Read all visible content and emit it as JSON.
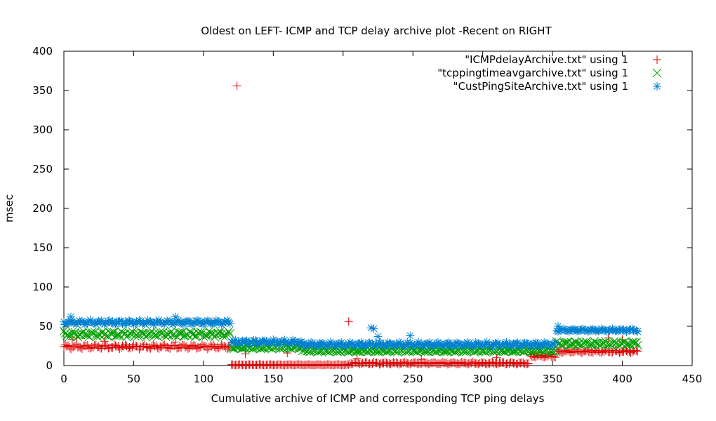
{
  "chart_data": {
    "type": "scatter",
    "title": "Oldest on LEFT- ICMP and TCP delay archive plot -Recent on RIGHT",
    "xlabel": "Cumulative archive of ICMP and corresponding TCP ping delays",
    "ylabel": "msec",
    "xlim": [
      0,
      450
    ],
    "ylim": [
      0,
      400
    ],
    "x_ticks": [
      0,
      50,
      100,
      150,
      200,
      250,
      300,
      350,
      400,
      450
    ],
    "y_ticks": [
      0,
      50,
      100,
      150,
      200,
      250,
      300,
      350,
      400
    ],
    "grid": false,
    "legend_position": "top-right",
    "series": [
      {
        "name": "\"ICMPdelayArchive.txt\" using 1",
        "marker": "plus",
        "color": "#e00000",
        "segments": [
          {
            "x_start": 0,
            "x_end": 119,
            "base": 24,
            "amplitude": 3
          },
          {
            "x_start": 120,
            "x_end": 204,
            "base": 1,
            "amplitude": 0.5
          },
          {
            "x_start": 205,
            "x_end": 333,
            "base": 3,
            "amplitude": 1.5
          },
          {
            "x_start": 334,
            "x_end": 352,
            "base": 12,
            "amplitude": 2
          },
          {
            "x_start": 353,
            "x_end": 411,
            "base": 18,
            "amplitude": 2
          }
        ],
        "outliers": [
          {
            "x": 124,
            "y": 356
          },
          {
            "x": 204,
            "y": 56
          },
          {
            "x": 6,
            "y": 33
          },
          {
            "x": 9,
            "y": 35
          },
          {
            "x": 29,
            "y": 31
          },
          {
            "x": 80,
            "y": 30
          },
          {
            "x": 130,
            "y": 15
          },
          {
            "x": 160,
            "y": 16
          },
          {
            "x": 210,
            "y": 9
          },
          {
            "x": 256,
            "y": 8
          },
          {
            "x": 310,
            "y": 10
          },
          {
            "x": 390,
            "y": 35
          },
          {
            "x": 400,
            "y": 33
          }
        ]
      },
      {
        "name": "\"tcppingtimeavgarchive.txt\" using 1",
        "marker": "x",
        "color": "#00a000",
        "segments": [
          {
            "x_start": 0,
            "x_end": 119,
            "base": 40,
            "amplitude": 4
          },
          {
            "x_start": 120,
            "x_end": 170,
            "base": 23,
            "amplitude": 2
          },
          {
            "x_start": 171,
            "x_end": 352,
            "base": 19,
            "amplitude": 2
          },
          {
            "x_start": 353,
            "x_end": 411,
            "base": 28,
            "amplitude": 3
          }
        ],
        "outliers": []
      },
      {
        "name": "\"CustPingSiteArchive.txt\" using 1",
        "marker": "star",
        "color": "#0080d0",
        "segments": [
          {
            "x_start": 0,
            "x_end": 119,
            "base": 55,
            "amplitude": 3
          },
          {
            "x_start": 120,
            "x_end": 170,
            "base": 30,
            "amplitude": 3
          },
          {
            "x_start": 171,
            "x_end": 352,
            "base": 27,
            "amplitude": 3
          },
          {
            "x_start": 353,
            "x_end": 411,
            "base": 45,
            "amplitude": 2
          }
        ],
        "outliers": [
          {
            "x": 5,
            "y": 62
          },
          {
            "x": 80,
            "y": 62
          },
          {
            "x": 220,
            "y": 48
          },
          {
            "x": 222,
            "y": 47
          },
          {
            "x": 225,
            "y": 37
          },
          {
            "x": 248,
            "y": 38
          },
          {
            "x": 354,
            "y": 50
          }
        ]
      }
    ]
  }
}
